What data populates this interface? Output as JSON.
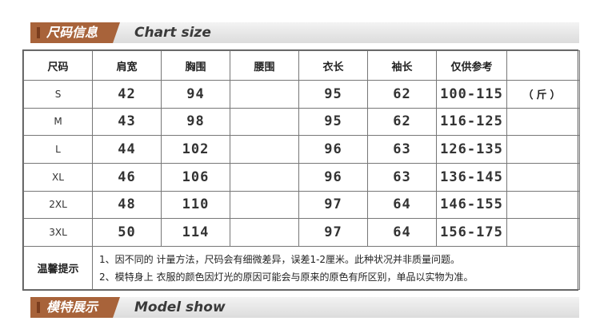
{
  "chart_section": {
    "tag_cn": "尺码信息",
    "tag_en": "Chart size"
  },
  "table": {
    "headers": [
      "尺码",
      "肩宽",
      "胸围",
      "腰围",
      "衣长",
      "袖长",
      "仅供参考",
      ""
    ],
    "unit": "（斤）",
    "rows": [
      {
        "size": "S",
        "shoulder": "42",
        "chest": "94",
        "waist": "",
        "length": "95",
        "sleeve": "62",
        "ref": "100-115"
      },
      {
        "size": "M",
        "shoulder": "43",
        "chest": "98",
        "waist": "",
        "length": "95",
        "sleeve": "62",
        "ref": "116-125"
      },
      {
        "size": "L",
        "shoulder": "44",
        "chest": "102",
        "waist": "",
        "length": "96",
        "sleeve": "63",
        "ref": "126-135"
      },
      {
        "size": "XL",
        "shoulder": "46",
        "chest": "106",
        "waist": "",
        "length": "96",
        "sleeve": "63",
        "ref": "136-145"
      },
      {
        "size": "2XL",
        "shoulder": "48",
        "chest": "110",
        "waist": "",
        "length": "97",
        "sleeve": "64",
        "ref": "146-155"
      },
      {
        "size": "3XL",
        "shoulder": "50",
        "chest": "114",
        "waist": "",
        "length": "97",
        "sleeve": "64",
        "ref": "156-175"
      }
    ],
    "note_label": "温馨提示",
    "notes": [
      "1、因不同的 计量方法，尺码会有细微差异，误差1-2厘米。此种状况并非质量问题。",
      "2、模特身上 衣服的颜色因灯光的原因可能会与原来的原色有所区别，单品以实物为准。"
    ]
  },
  "model_section": {
    "tag_cn": "模特展示",
    "tag_en": "Model show"
  },
  "colors": {
    "accent": "#a8633a",
    "border": "#777777"
  }
}
